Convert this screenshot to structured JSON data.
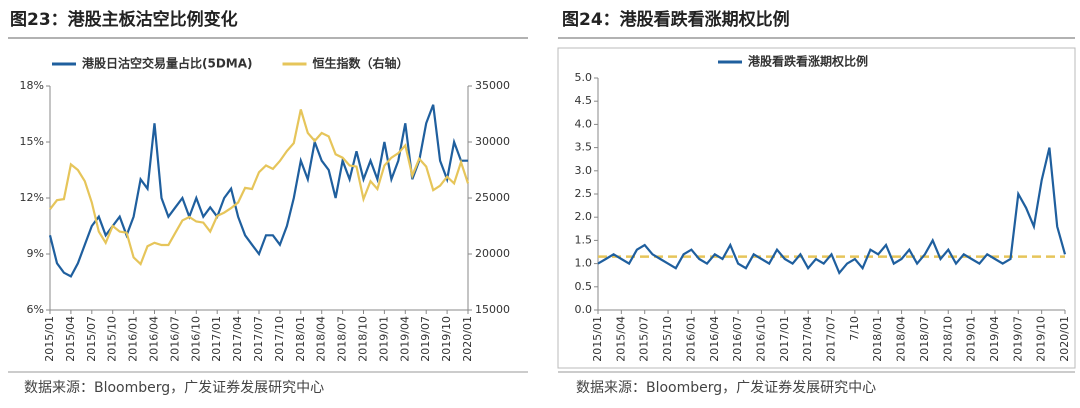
{
  "chart_data": [
    {
      "type": "line",
      "title": "图23：港股主板沽空比例变化",
      "source": "数据来源：Bloomberg，广发证券发展研究中心",
      "categories": [
        "2015/01",
        null,
        null,
        "2015/04",
        null,
        null,
        "2015/07",
        null,
        null,
        "2015/10",
        null,
        null,
        "2016/01",
        null,
        null,
        "2016/04",
        null,
        null,
        "2016/07",
        null,
        null,
        "2016/10",
        null,
        null,
        "2017/01",
        null,
        null,
        "2017/04",
        null,
        null,
        "2017/07",
        null,
        null,
        "2017/10",
        null,
        null,
        "2018/01",
        null,
        null,
        "2018/04",
        null,
        null,
        "2018/07",
        null,
        null,
        "2018/10",
        null,
        null,
        "2019/01",
        null,
        null,
        "2019/04",
        null,
        null,
        "2019/07",
        null,
        null,
        "2019/10",
        null,
        null,
        "2020/01"
      ],
      "ylim": [
        6,
        18
      ],
      "yticks": [
        {
          "value": 6,
          "label": "6%"
        },
        {
          "value": 9,
          "label": "9%"
        },
        {
          "value": 12,
          "label": "12%"
        },
        {
          "value": 15,
          "label": "15%"
        },
        {
          "value": 18,
          "label": "18%"
        }
      ],
      "y2lim": [
        15000,
        35000
      ],
      "y2ticks": [
        15000,
        20000,
        25000,
        30000,
        35000
      ],
      "series": [
        {
          "name": "港股日沽空交易量占比(5DMA)",
          "color": "#1f5f9e",
          "values": [
            10,
            8.5,
            8,
            7.8,
            8.5,
            9.5,
            10.5,
            11,
            10,
            10.5,
            11,
            10,
            11,
            13,
            12.5,
            16,
            12,
            11,
            11.5,
            12,
            11,
            12,
            11,
            11.5,
            11,
            12,
            12.5,
            11,
            10,
            9.5,
            9,
            10,
            10,
            9.5,
            10.5,
            12,
            14,
            13,
            15,
            14,
            13.5,
            12,
            14,
            13,
            14.5,
            13,
            14,
            13,
            15,
            13,
            14,
            16,
            13,
            14,
            16,
            17,
            14,
            13,
            15,
            14,
            14
          ]
        },
        {
          "name": "恒生指数（右轴）",
          "color": "#e6c55a",
          "axis": "y2",
          "values": [
            24000,
            24800,
            24900,
            28000,
            27500,
            26500,
            24600,
            22000,
            21000,
            22500,
            22000,
            21900,
            19700,
            19100,
            20700,
            21000,
            20800,
            20800,
            21900,
            23000,
            23300,
            22900,
            22800,
            22000,
            23400,
            23700,
            24100,
            24600,
            25900,
            25800,
            27300,
            27900,
            27600,
            28300,
            29200,
            29900,
            32900,
            30800,
            30100,
            30800,
            30500,
            28900,
            28600,
            27900,
            27800,
            24900,
            26500,
            25800,
            27900,
            28600,
            29000,
            29700,
            27000,
            28500,
            27800,
            25700,
            26100,
            26900,
            26300,
            28200,
            26300
          ]
        }
      ]
    },
    {
      "type": "line",
      "title": "图24：港股看跌看涨期权比例",
      "source": "数据来源：Bloomberg，广发证券发展研究中心",
      "categories": [
        "2015/01",
        null,
        null,
        "2015/04",
        null,
        null,
        "2015/07",
        null,
        null,
        "2015/10",
        null,
        null,
        "2016/01",
        null,
        null,
        "2016/04",
        null,
        null,
        "2016/07",
        null,
        null,
        "2016/10",
        null,
        null,
        "2017/01",
        null,
        null,
        "2017/04",
        null,
        null,
        "2017/07",
        null,
        null,
        "7/10",
        null,
        null,
        "2018/01",
        null,
        null,
        "2018/04",
        null,
        null,
        "2018/07",
        null,
        null,
        "2018/10",
        null,
        null,
        "2019/01",
        null,
        null,
        "2019/04",
        null,
        null,
        "2019/07",
        null,
        null,
        "2019/10",
        null,
        null,
        "2020/01"
      ],
      "ylim": [
        0,
        5
      ],
      "yticks": [
        {
          "value": 0,
          "label": "0.0"
        },
        0.5,
        {
          "value": 1,
          "label": "1.0"
        },
        1.5,
        {
          "value": 2,
          "label": "2.0"
        },
        2.5,
        {
          "value": 3,
          "label": "3.0"
        },
        3.5,
        {
          "value": 4,
          "label": "4.0"
        },
        4.5,
        {
          "value": 5,
          "label": "5.0"
        }
      ],
      "average": 1.15,
      "average_color": "#e6c55a",
      "series": [
        {
          "name": "港股看跌看涨期权比例",
          "color": "#1f5f9e",
          "values": [
            1.0,
            1.1,
            1.2,
            1.1,
            1.0,
            1.3,
            1.4,
            1.2,
            1.1,
            1.0,
            0.9,
            1.2,
            1.3,
            1.1,
            1.0,
            1.2,
            1.1,
            1.4,
            1.0,
            0.9,
            1.2,
            1.1,
            1.0,
            1.3,
            1.1,
            1.0,
            1.2,
            0.9,
            1.1,
            1.0,
            1.2,
            0.8,
            1.0,
            1.1,
            0.9,
            1.3,
            1.2,
            1.4,
            1.0,
            1.1,
            1.3,
            1.0,
            1.2,
            1.5,
            1.1,
            1.3,
            1.0,
            1.2,
            1.1,
            1.0,
            1.2,
            1.1,
            1.0,
            1.1,
            2.5,
            2.2,
            1.8,
            2.8,
            3.5,
            1.8,
            1.2
          ]
        }
      ]
    }
  ]
}
